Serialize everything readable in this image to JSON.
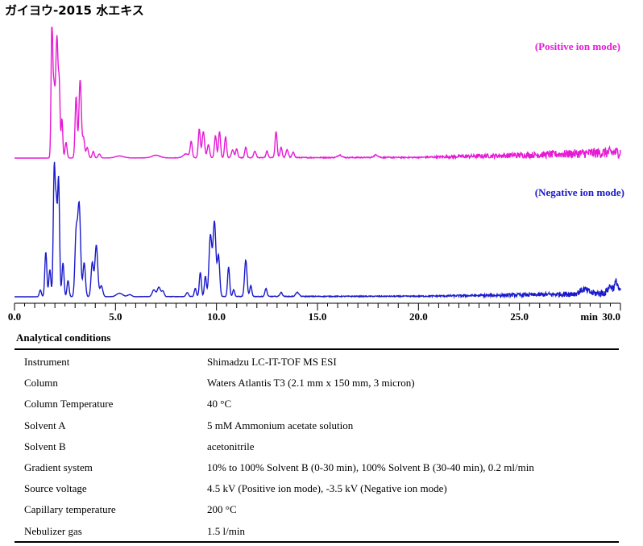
{
  "title": "ガイヨウ-2015 水エキス",
  "chart_data": {
    "type": "line",
    "xlabel": "min",
    "xlim": [
      0.0,
      30.0
    ],
    "x_ticks": [
      "0.0",
      "5.0",
      "10.0",
      "15.0",
      "20.0",
      "25.0",
      "30.0"
    ],
    "series": [
      {
        "name": "(Positive ion mode)",
        "color": "#e619d6",
        "noise": [
          [
            1.2,
            0
          ],
          [
            20,
            0.01
          ],
          [
            26,
            0.05
          ],
          [
            30,
            0.09
          ]
        ],
        "peaks": [
          [
            1.85,
            1.0,
            0.04
          ],
          [
            1.95,
            0.52,
            0.05
          ],
          [
            2.1,
            0.93,
            0.06
          ],
          [
            2.22,
            0.48,
            0.04
          ],
          [
            2.35,
            0.3,
            0.04
          ],
          [
            2.55,
            0.12,
            0.05
          ],
          [
            3.05,
            0.47,
            0.05
          ],
          [
            3.25,
            0.6,
            0.06
          ],
          [
            3.42,
            0.15,
            0.05
          ],
          [
            3.6,
            0.08,
            0.06
          ],
          [
            3.9,
            0.05,
            0.05
          ],
          [
            4.2,
            0.03,
            0.06
          ],
          [
            5.2,
            0.015,
            0.2
          ],
          [
            7.0,
            0.02,
            0.2
          ],
          [
            8.5,
            0.03,
            0.15
          ],
          [
            8.75,
            0.12,
            0.05
          ],
          [
            9.15,
            0.22,
            0.05
          ],
          [
            9.35,
            0.2,
            0.06
          ],
          [
            9.6,
            0.1,
            0.06
          ],
          [
            9.95,
            0.17,
            0.05
          ],
          [
            10.15,
            0.2,
            0.05
          ],
          [
            10.45,
            0.16,
            0.05
          ],
          [
            10.8,
            0.06,
            0.06
          ],
          [
            11.0,
            0.07,
            0.05
          ],
          [
            11.45,
            0.08,
            0.05
          ],
          [
            11.9,
            0.05,
            0.06
          ],
          [
            12.5,
            0.05,
            0.05
          ],
          [
            12.95,
            0.2,
            0.05
          ],
          [
            13.2,
            0.08,
            0.05
          ],
          [
            13.5,
            0.06,
            0.06
          ],
          [
            13.8,
            0.04,
            0.06
          ],
          [
            16.1,
            0.02,
            0.1
          ],
          [
            17.9,
            0.02,
            0.1
          ]
        ]
      },
      {
        "name": "(Negative ion mode)",
        "color": "#1a1acc",
        "noise": [
          [
            0.5,
            0
          ],
          [
            20,
            0.008
          ],
          [
            26,
            0.03
          ],
          [
            30,
            0.06
          ]
        ],
        "peaks": [
          [
            1.28,
            0.05,
            0.05
          ],
          [
            1.55,
            0.33,
            0.05
          ],
          [
            1.75,
            0.2,
            0.05
          ],
          [
            1.97,
            0.97,
            0.05
          ],
          [
            2.07,
            0.55,
            0.04
          ],
          [
            2.18,
            0.88,
            0.05
          ],
          [
            2.4,
            0.25,
            0.05
          ],
          [
            2.65,
            0.12,
            0.05
          ],
          [
            3.05,
            0.45,
            0.06
          ],
          [
            3.2,
            0.68,
            0.07
          ],
          [
            3.45,
            0.25,
            0.06
          ],
          [
            3.85,
            0.25,
            0.06
          ],
          [
            4.05,
            0.38,
            0.07
          ],
          [
            4.3,
            0.08,
            0.07
          ],
          [
            5.2,
            0.025,
            0.15
          ],
          [
            5.7,
            0.015,
            0.1
          ],
          [
            6.9,
            0.05,
            0.08
          ],
          [
            7.15,
            0.07,
            0.08
          ],
          [
            7.35,
            0.04,
            0.06
          ],
          [
            8.55,
            0.03,
            0.06
          ],
          [
            8.95,
            0.06,
            0.05
          ],
          [
            9.2,
            0.18,
            0.05
          ],
          [
            9.45,
            0.15,
            0.05
          ],
          [
            9.7,
            0.45,
            0.07
          ],
          [
            9.9,
            0.55,
            0.07
          ],
          [
            10.1,
            0.3,
            0.06
          ],
          [
            10.6,
            0.22,
            0.05
          ],
          [
            10.85,
            0.05,
            0.05
          ],
          [
            11.45,
            0.27,
            0.06
          ],
          [
            11.7,
            0.08,
            0.05
          ],
          [
            12.45,
            0.06,
            0.05
          ],
          [
            13.2,
            0.03,
            0.06
          ],
          [
            14.0,
            0.03,
            0.08
          ],
          [
            28.2,
            0.03,
            0.2
          ],
          [
            29.5,
            0.05,
            0.12
          ],
          [
            29.8,
            0.08,
            0.08
          ]
        ]
      }
    ]
  },
  "conditions": {
    "title": "Analytical conditions",
    "rows": [
      {
        "label": "Instrument",
        "value": "Shimadzu LC-IT-TOF MS ESI"
      },
      {
        "label": "Column",
        "value": "Waters Atlantis T3 (2.1 mm x 150 mm, 3 micron)"
      },
      {
        "label": "Column Temperature",
        "value": "40 °C"
      },
      {
        "label": "Solvent A",
        "value": "5 mM Ammonium acetate solution"
      },
      {
        "label": "Solvent B",
        "value": "acetonitrile"
      },
      {
        "label": "Gradient system",
        "value": "10% to 100% Solvent B (0-30 min), 100% Solvent B (30-40 min), 0.2 ml/min"
      },
      {
        "label": "Source voltage",
        "value": "4.5 kV (Positive ion mode), -3.5 kV (Negative ion mode)"
      },
      {
        "label": "Capillary temperature",
        "value": "200 °C"
      },
      {
        "label": "Nebulizer gas",
        "value": "1.5 l/min"
      }
    ]
  }
}
